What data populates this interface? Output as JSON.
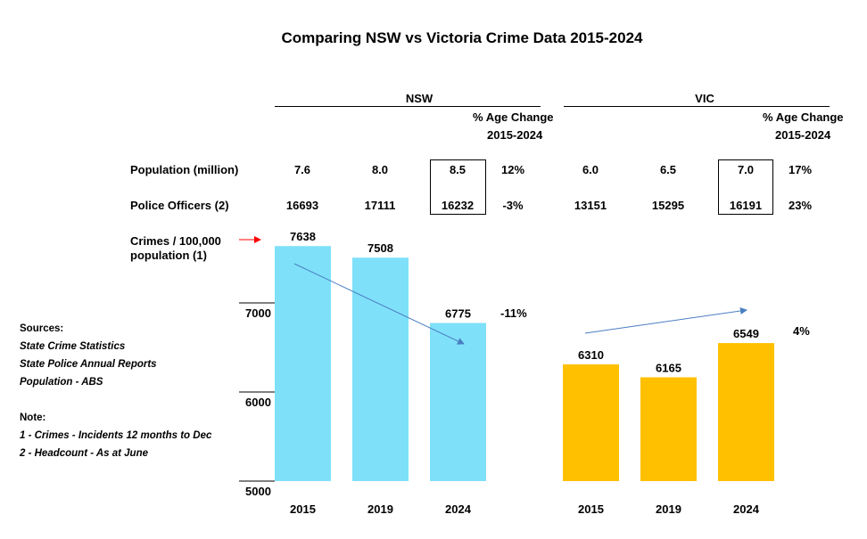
{
  "title": "Comparing NSW vs Victoria Crime Data 2015-2024",
  "nsw": {
    "header": "NSW",
    "pct_header_1": "% Age Change",
    "pct_header_2": "2015-2024",
    "population": [
      "7.6",
      "8.0",
      "8.5",
      "12%"
    ],
    "police": [
      "16693",
      "17111",
      "16232",
      "-3%"
    ],
    "crimes_change": "-11%"
  },
  "vic": {
    "header": "VIC",
    "pct_header_1": "% Age Change",
    "pct_header_2": "2015-2024",
    "population": [
      "6.0",
      "6.5",
      "7.0",
      "17%"
    ],
    "police": [
      "13151",
      "15295",
      "16191",
      "23%"
    ],
    "crimes_change": "4%"
  },
  "row_labels": {
    "population": "Population (million)",
    "police": "Police Officers (2)",
    "crimes_1": "Crimes / 100,000",
    "crimes_2": "population (1)"
  },
  "notes": {
    "sources_heading": "Sources:",
    "sources": [
      "State Crime Statistics",
      "State Police Annual Reports",
      "Population - ABS"
    ],
    "note_heading": "Note:",
    "notes": [
      "1 - Crimes - Incidents 12 months to Dec",
      "2 - Headcount - As at June"
    ]
  },
  "colors": {
    "nsw": "#7FE0FA",
    "vic": "#FFC000",
    "arrow": "#4A7EC2",
    "marker": "#FF0000"
  },
  "chart_data": [
    {
      "type": "bar",
      "categories": [
        "2015",
        "2019",
        "2024"
      ],
      "values": [
        7638,
        7508,
        6775
      ],
      "ylim": [
        5000,
        7638
      ],
      "yticks": [
        "7000",
        "6000",
        "5000"
      ],
      "xlabel": "",
      "ylabel": ""
    },
    {
      "type": "bar",
      "categories": [
        "2015",
        "2019",
        "2024"
      ],
      "values": [
        6310,
        6165,
        6549
      ],
      "ylim": [
        5000,
        7638
      ],
      "xlabel": "",
      "ylabel": ""
    }
  ]
}
